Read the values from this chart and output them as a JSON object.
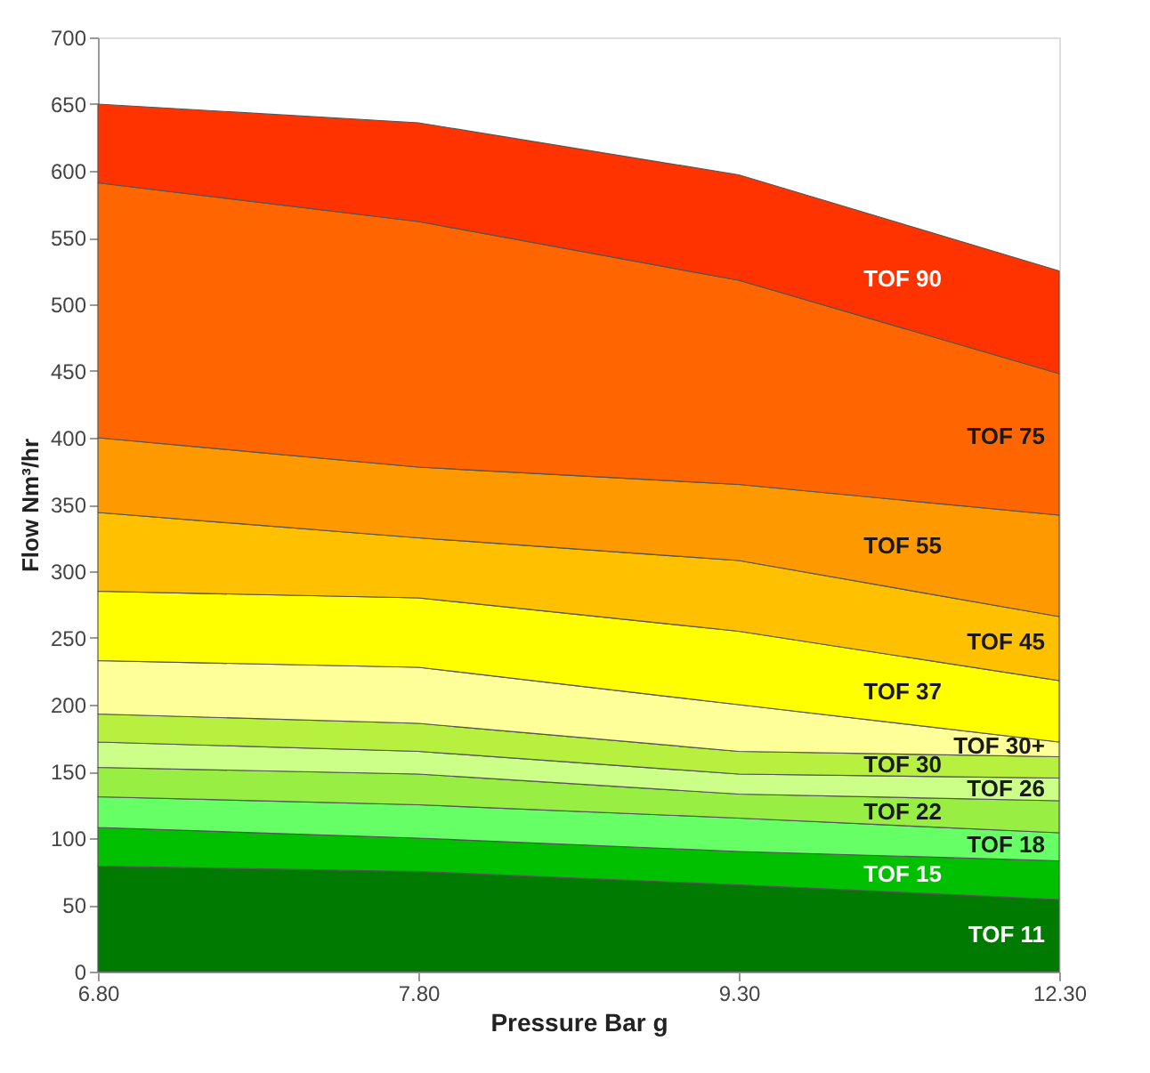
{
  "chart_data": {
    "type": "area",
    "stacked": true,
    "xlabel": "Pressure Bar g",
    "ylabel": "Flow Nm³/hr",
    "categories": [
      "6.80",
      "7.80",
      "9.30",
      "12.30"
    ],
    "ylim": [
      0,
      700
    ],
    "yticks": [
      0,
      50,
      100,
      150,
      200,
      250,
      300,
      350,
      400,
      450,
      500,
      550,
      600,
      650,
      700
    ],
    "grid": false,
    "legend": false,
    "series": [
      {
        "name": "TOF 11",
        "color": "#007a00",
        "values": [
          79,
          75,
          65,
          54
        ]
      },
      {
        "name": "TOF 15",
        "color": "#00c000",
        "values": [
          29,
          25,
          25,
          29
        ]
      },
      {
        "name": "TOF 18",
        "color": "#66ff66",
        "values": [
          23,
          25,
          25,
          21
        ]
      },
      {
        "name": "TOF 22",
        "color": "#99ee44",
        "values": [
          22,
          23,
          18,
          24
        ]
      },
      {
        "name": "TOF 26",
        "color": "#ccff88",
        "values": [
          19,
          17,
          15,
          17
        ]
      },
      {
        "name": "TOF 30",
        "color": "#b8f040",
        "values": [
          21,
          21,
          17,
          16
        ]
      },
      {
        "name": "TOF 30+",
        "color": "#ffff99",
        "values": [
          40,
          42,
          35,
          11
        ]
      },
      {
        "name": "TOF 37",
        "color": "#ffff00",
        "values": [
          52,
          52,
          55,
          46
        ]
      },
      {
        "name": "TOF 45",
        "color": "#ffc000",
        "values": [
          59,
          45,
          53,
          48
        ]
      },
      {
        "name": "TOF 55",
        "color": "#ff9900",
        "values": [
          56,
          53,
          57,
          76
        ]
      },
      {
        "name": "TOF 75",
        "color": "#ff6600",
        "values": [
          191,
          184,
          153,
          106
        ]
      },
      {
        "name": "TOF 90",
        "color": "#ff3300",
        "values": [
          59,
          74,
          79,
          77
        ]
      }
    ]
  }
}
